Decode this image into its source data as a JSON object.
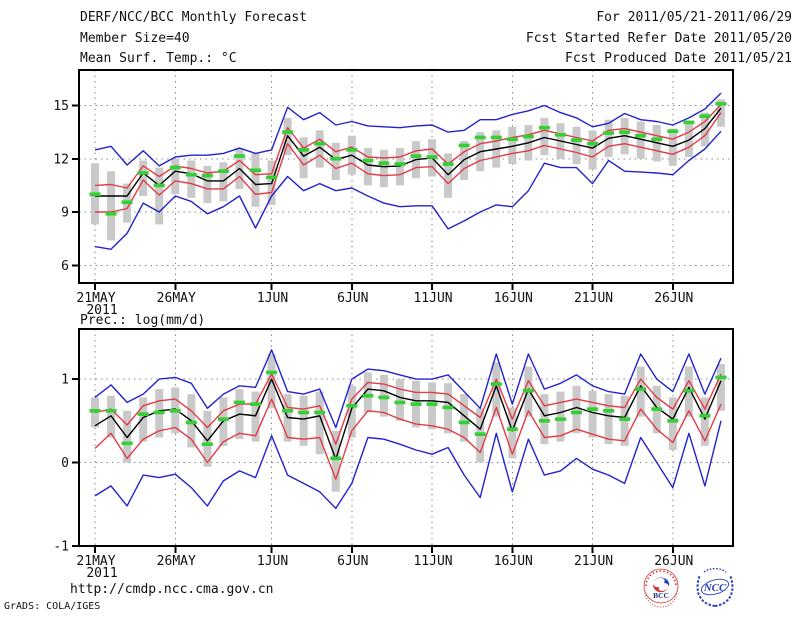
{
  "header": {
    "title": "DERF/NCC/BCC Monthly Forecast",
    "member_size": "Member Size=40",
    "for_range": "For 2011/05/21-2011/06/29",
    "refer_date": "Fcst Started Refer Date 2011/05/20",
    "produced_date": "Fcst Produced Date 2011/05/21"
  },
  "footer": {
    "url": "http://cmdp.ncc.cma.gov.cn",
    "credit": "GrADS: COLA/IGES",
    "logos": [
      {
        "name": "bcc-logo",
        "label": "BCC"
      },
      {
        "name": "ncc-logo",
        "label": "NCC"
      }
    ]
  },
  "colors": {
    "blue_envelope": "#2323cd",
    "red_envelope": "#e23b47",
    "mean_line": "#000000",
    "obs_dash": "#33cf33",
    "spread_bar": "#c9c9c9",
    "grid": "#8a8a8a",
    "frame": "#000000"
  },
  "chart_data": [
    {
      "type": "line",
      "title": "Mean Surf. Temp.: °C",
      "ylim": [
        5,
        17
      ],
      "yticks": [
        6,
        9,
        12,
        15
      ],
      "xtick_days": [
        0,
        5,
        11,
        16,
        21,
        26,
        31,
        36
      ],
      "xtick_labels": [
        "21MAY",
        "26MAY",
        "1JUN",
        "6JUN",
        "11JUN",
        "16JUN",
        "21JUN",
        "26JUN"
      ],
      "x_year_label": "2011",
      "n_days": 40,
      "series": [
        {
          "name": "member-spread-bar",
          "kind": "bar",
          "color": "#c9c9c9",
          "low": [
            8.3,
            7.4,
            8.4,
            9.9,
            8.3,
            10.0,
            9.8,
            9.5,
            9.6,
            10.3,
            9.3,
            9.4,
            12.2,
            10.9,
            11.5,
            10.8,
            11.1,
            10.5,
            10.4,
            10.5,
            10.9,
            11.0,
            9.8,
            10.8,
            11.3,
            11.5,
            11.7,
            11.9,
            12.2,
            12.0,
            11.7,
            11.4,
            12.1,
            12.25,
            12.0,
            11.85,
            11.6,
            12.1,
            12.7,
            13.8
          ],
          "high": [
            11.75,
            11.3,
            10.6,
            11.9,
            11.5,
            12.0,
            11.9,
            11.6,
            11.8,
            12.6,
            12.3,
            11.9,
            14.3,
            13.2,
            13.6,
            12.9,
            13.3,
            12.6,
            12.5,
            12.6,
            13.0,
            13.1,
            12.3,
            13.0,
            13.5,
            13.6,
            13.8,
            13.9,
            14.3,
            14.0,
            13.8,
            13.6,
            14.2,
            14.3,
            14.1,
            13.9,
            13.7,
            14.1,
            14.6,
            15.35
          ]
        },
        {
          "name": "ensemble-max",
          "kind": "line",
          "color": "#2323cd",
          "values": [
            12.5,
            12.7,
            11.65,
            12.45,
            11.6,
            12.1,
            12.2,
            12.2,
            12.3,
            12.6,
            12.3,
            12.5,
            14.9,
            14.2,
            14.6,
            13.9,
            14.1,
            13.85,
            13.8,
            13.75,
            13.85,
            13.9,
            13.5,
            13.6,
            14.2,
            14.2,
            14.5,
            14.7,
            15.0,
            14.6,
            14.3,
            13.8,
            14.0,
            14.55,
            14.2,
            14.1,
            13.9,
            14.3,
            14.8,
            15.7
          ]
        },
        {
          "name": "ensemble-min",
          "kind": "line",
          "color": "#2323cd",
          "values": [
            7.05,
            6.9,
            7.8,
            9.5,
            9.0,
            9.9,
            9.6,
            8.9,
            9.3,
            9.9,
            8.1,
            9.9,
            11.0,
            10.2,
            10.6,
            10.2,
            10.35,
            9.9,
            9.5,
            9.3,
            9.35,
            9.35,
            8.05,
            8.5,
            9.0,
            9.4,
            9.3,
            10.2,
            11.75,
            11.5,
            11.5,
            10.6,
            11.9,
            11.3,
            11.25,
            11.2,
            11.1,
            11.9,
            12.55,
            13.55
          ]
        },
        {
          "name": "mean-plus-spread",
          "kind": "line",
          "color": "#e23b47",
          "values": [
            10.5,
            10.55,
            10.35,
            11.6,
            11.0,
            11.6,
            11.45,
            11.2,
            11.3,
            11.9,
            11.1,
            11.15,
            13.75,
            12.6,
            13.1,
            12.4,
            12.65,
            12.1,
            12.05,
            12.1,
            12.45,
            12.55,
            11.7,
            12.4,
            12.85,
            13.0,
            13.2,
            13.35,
            13.6,
            13.4,
            13.2,
            13.0,
            13.6,
            13.7,
            13.5,
            13.3,
            13.1,
            13.5,
            14.1,
            15.05
          ]
        },
        {
          "name": "mean-minus-spread",
          "kind": "line",
          "color": "#e23b47",
          "values": [
            9.0,
            9.0,
            9.2,
            10.8,
            9.95,
            10.75,
            10.6,
            10.3,
            10.3,
            11.0,
            10.0,
            10.1,
            12.85,
            11.65,
            12.2,
            11.45,
            11.75,
            11.15,
            11.05,
            11.1,
            11.5,
            11.55,
            10.6,
            11.45,
            11.9,
            12.1,
            12.3,
            12.45,
            12.75,
            12.55,
            12.35,
            12.1,
            12.7,
            12.85,
            12.65,
            12.45,
            12.25,
            12.65,
            13.3,
            14.6
          ]
        },
        {
          "name": "ensemble-mean",
          "kind": "line",
          "color": "#000000",
          "values": [
            9.9,
            9.9,
            9.9,
            11.2,
            10.5,
            11.3,
            11.15,
            10.75,
            10.75,
            11.45,
            10.55,
            10.6,
            13.3,
            12.15,
            12.65,
            11.95,
            12.2,
            11.65,
            11.55,
            11.6,
            11.95,
            12.05,
            11.1,
            11.95,
            12.4,
            12.55,
            12.7,
            12.9,
            13.2,
            13.0,
            12.8,
            12.6,
            13.15,
            13.3,
            13.1,
            12.9,
            12.7,
            13.05,
            13.7,
            14.85
          ]
        },
        {
          "name": "observation-dash",
          "kind": "dash",
          "color": "#33cf33",
          "values": [
            10.0,
            8.9,
            9.55,
            11.2,
            10.5,
            11.5,
            11.1,
            11.05,
            11.3,
            12.15,
            11.35,
            10.95,
            13.5,
            12.5,
            12.85,
            12.0,
            12.5,
            11.9,
            11.75,
            11.7,
            12.15,
            12.1,
            11.7,
            12.75,
            13.2,
            13.2,
            13.1,
            13.25,
            13.75,
            13.35,
            13.05,
            12.85,
            13.45,
            13.5,
            13.3,
            13.1,
            13.55,
            14.05,
            14.4,
            15.1
          ]
        }
      ]
    },
    {
      "type": "line",
      "title": "Prec.: log(mm/d)",
      "ylim": [
        -1,
        1.6
      ],
      "yticks": [
        -1,
        0,
        1
      ],
      "xtick_days": [
        0,
        5,
        11,
        16,
        21,
        26,
        31,
        36
      ],
      "xtick_labels": [
        "21MAY",
        "26MAY",
        "1JUN",
        "6JUN",
        "11JUN",
        "16JUN",
        "21JUN",
        "26JUN"
      ],
      "x_year_label": "2011",
      "n_days": 40,
      "series": [
        {
          "name": "member-spread-bar",
          "kind": "bar",
          "color": "#c9c9c9",
          "low": [
            0.42,
            0.3,
            0.0,
            0.25,
            0.3,
            0.35,
            0.18,
            -0.05,
            0.2,
            0.28,
            0.25,
            0.65,
            0.25,
            0.2,
            0.1,
            -0.35,
            0.3,
            0.6,
            0.55,
            0.5,
            0.42,
            0.4,
            0.35,
            0.25,
            0.0,
            0.55,
            0.05,
            0.55,
            0.22,
            0.25,
            0.35,
            0.3,
            0.22,
            0.2,
            0.55,
            0.35,
            0.15,
            0.55,
            0.2,
            0.62
          ],
          "high": [
            0.78,
            0.8,
            0.62,
            0.78,
            0.88,
            0.9,
            0.82,
            0.62,
            0.78,
            0.88,
            0.85,
            1.3,
            0.82,
            0.8,
            0.85,
            0.38,
            0.92,
            1.08,
            1.05,
            1.0,
            0.98,
            0.96,
            0.95,
            0.82,
            0.65,
            1.2,
            0.66,
            1.15,
            0.82,
            0.85,
            0.92,
            0.86,
            0.82,
            0.8,
            1.15,
            0.92,
            0.78,
            1.15,
            0.78,
            1.18
          ]
        },
        {
          "name": "ensemble-max",
          "kind": "line",
          "color": "#2323cd",
          "values": [
            0.78,
            0.93,
            0.72,
            0.82,
            1.0,
            1.02,
            0.95,
            0.65,
            0.82,
            0.92,
            0.9,
            1.35,
            0.85,
            0.82,
            0.88,
            0.42,
            1.0,
            1.12,
            1.1,
            1.05,
            1.0,
            1.0,
            1.05,
            0.85,
            0.65,
            1.3,
            0.7,
            1.3,
            0.88,
            0.95,
            1.05,
            0.92,
            0.85,
            0.82,
            1.3,
            1.0,
            0.85,
            1.3,
            0.82,
            1.25
          ]
        },
        {
          "name": "ensemble-min",
          "kind": "line",
          "color": "#2323cd",
          "values": [
            -0.4,
            -0.28,
            -0.52,
            -0.15,
            -0.18,
            -0.14,
            -0.3,
            -0.52,
            -0.22,
            -0.1,
            -0.18,
            0.32,
            -0.15,
            -0.25,
            -0.35,
            -0.55,
            -0.25,
            0.3,
            0.28,
            0.22,
            0.15,
            0.1,
            0.18,
            -0.15,
            -0.42,
            0.35,
            -0.35,
            0.28,
            -0.15,
            -0.1,
            0.05,
            -0.08,
            -0.15,
            -0.25,
            0.3,
            0.0,
            -0.3,
            0.35,
            -0.28,
            0.5
          ]
        },
        {
          "name": "mean-plus-spread",
          "kind": "line",
          "color": "#e23b47",
          "values": [
            0.6,
            0.64,
            0.45,
            0.68,
            0.74,
            0.76,
            0.62,
            0.42,
            0.62,
            0.7,
            0.7,
            1.06,
            0.66,
            0.64,
            0.68,
            0.22,
            0.76,
            0.96,
            0.94,
            0.88,
            0.84,
            0.84,
            0.82,
            0.68,
            0.54,
            1.0,
            0.52,
            0.98,
            0.68,
            0.72,
            0.76,
            0.72,
            0.68,
            0.66,
            1.0,
            0.78,
            0.64,
            0.98,
            0.64,
            1.06
          ],
          "note": ""
        },
        {
          "name": "mean-minus-spread",
          "kind": "line",
          "color": "#e23b47",
          "values": [
            0.17,
            0.35,
            0.05,
            0.28,
            0.38,
            0.42,
            0.28,
            0.0,
            0.25,
            0.35,
            0.32,
            0.76,
            0.3,
            0.28,
            0.3,
            -0.2,
            0.38,
            0.62,
            0.6,
            0.52,
            0.46,
            0.44,
            0.4,
            0.3,
            0.12,
            0.66,
            0.1,
            0.62,
            0.3,
            0.32,
            0.4,
            0.34,
            0.28,
            0.26,
            0.64,
            0.4,
            0.24,
            0.62,
            0.26,
            0.7
          ]
        },
        {
          "name": "ensemble-mean",
          "kind": "line",
          "color": "#000000",
          "values": [
            0.44,
            0.56,
            0.3,
            0.54,
            0.62,
            0.64,
            0.5,
            0.26,
            0.5,
            0.58,
            0.56,
            1.0,
            0.54,
            0.52,
            0.56,
            0.04,
            0.65,
            0.88,
            0.86,
            0.78,
            0.74,
            0.74,
            0.72,
            0.56,
            0.4,
            0.92,
            0.38,
            0.88,
            0.56,
            0.6,
            0.66,
            0.6,
            0.56,
            0.54,
            0.92,
            0.66,
            0.52,
            0.9,
            0.52,
            0.98
          ]
        },
        {
          "name": "observation-dash",
          "kind": "dash",
          "color": "#33cf33",
          "values": [
            0.62,
            0.62,
            0.23,
            0.58,
            0.6,
            0.62,
            0.48,
            0.22,
            0.52,
            0.72,
            0.7,
            1.08,
            0.62,
            0.6,
            0.6,
            0.05,
            0.68,
            0.8,
            0.78,
            0.72,
            0.7,
            0.7,
            0.66,
            0.48,
            0.34,
            0.94,
            0.4,
            0.86,
            0.5,
            0.52,
            0.6,
            0.64,
            0.62,
            0.52,
            0.88,
            0.64,
            0.5,
            0.86,
            0.56,
            1.02
          ]
        }
      ]
    }
  ]
}
